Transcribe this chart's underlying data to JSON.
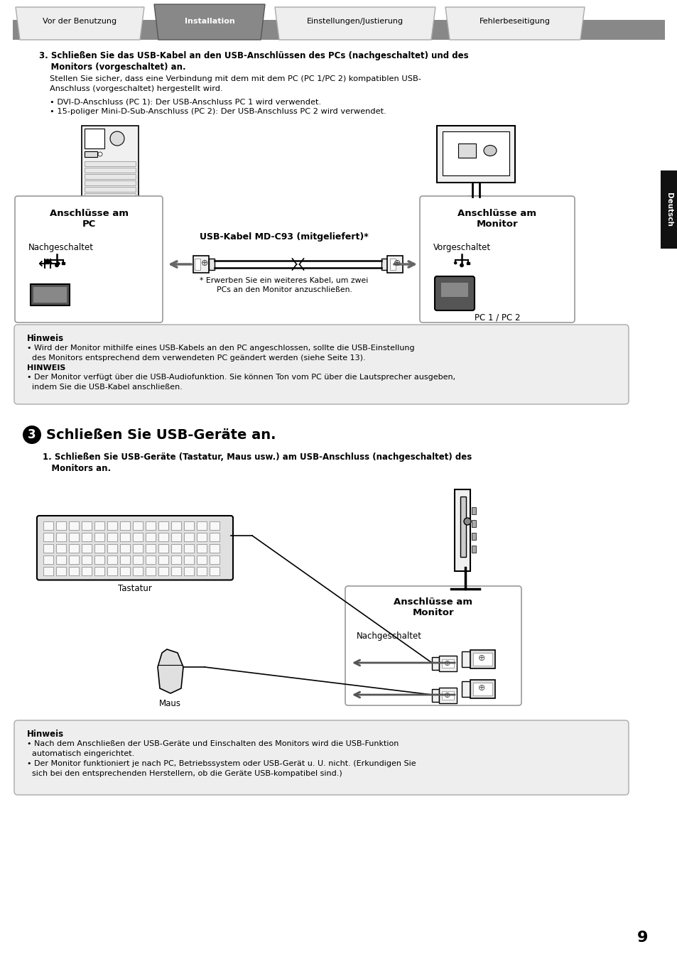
{
  "bg_color": "#ffffff",
  "tab_labels": [
    "Vor der Benutzung",
    "Installation",
    "Einstellungen/Justierung",
    "Fehlerbeseitigung"
  ],
  "active_tab": 1,
  "tab_active_color": "#888888",
  "tab_inactive_color": "#eeeeee",
  "tab_bar_color": "#888888",
  "section3_line1": "3. Schließen Sie das USB-Kabel an den USB-Anschlüssen des PCs (nachgeschaltet) und des",
  "section3_line2": "    Monitors (vorgeschaltet) an.",
  "section3_body1": "Stellen Sie sicher, dass eine Verbindung mit dem mit dem PC (PC 1/PC 2) kompatiblen USB-",
  "section3_body2": "Anschluss (vorgeschaltet) hergestellt wird.",
  "section3_bullet1": "• DVI-D-Anschluss (PC 1): Der USB-Anschluss PC 1 wird verwendet.",
  "section3_bullet2": "• 15-poliger Mini-D-Sub-Anschluss (PC 2): Der USB-Anschluss PC 2 wird verwendet.",
  "box1_title": "Anschlüsse am\nPC",
  "box1_sub1": "Nachgeschaltet",
  "box2_title": "Anschlüsse am\nMonitor",
  "box2_sub1": "Vorgeschaltet",
  "box2_sub2": "PC 1 / PC 2",
  "cable_label": "USB-Kabel MD-C93 (mitgeliefert)*",
  "cable_note1": "* Erwerben Sie ein weiteres Kabel, um zwei",
  "cable_note2": "PCs an den Monitor anzuschließen.",
  "hinweis1_title": "Hinweis",
  "hinweis1_l1": "• Wird der Monitor mithilfe eines USB-Kabels an den PC angeschlossen, sollte die USB-Einstellung",
  "hinweis1_l2": "  des Monitors entsprechend dem verwendeten PC geändert werden (siehe Seite 13).",
  "hinweis1_l3": "HINWEIS",
  "hinweis1_l4": "• Der Monitor verfügt über die USB-Audiofunktion. Sie können Ton vom PC über die Lautsprecher ausgeben,",
  "hinweis1_l5": "  indem Sie die USB-Kabel anschließen.",
  "section_num": "3",
  "section_title": "Schließen Sie USB-Geräte an.",
  "step1_l1": "1. Schließen Sie USB-Geräte (Tastatur, Maus usw.) am USB-Anschluss (nachgeschaltet) des",
  "step1_l2": "   Monitors an.",
  "box3_title": "Anschlüsse am\nMonitor",
  "box3_sub1": "Nachgeschaltet",
  "keyboard_label": "Tastatur",
  "mouse_label": "Maus",
  "hinweis2_title": "Hinweis",
  "hinweis2_l1": "• Nach dem Anschließen der USB-Geräte und Einschalten des Monitors wird die USB-Funktion",
  "hinweis2_l2": "  automatisch eingerichtet.",
  "hinweis2_l3": "• Der Monitor funktioniert je nach PC, Betriebssystem oder USB-Gerät u. U. nicht. (Erkundigen Sie",
  "hinweis2_l4": "  sich bei den entsprechenden Herstellern, ob die Geräte USB-kompatibel sind.)",
  "page_number": "9",
  "deutsch_label": "Deutsch"
}
